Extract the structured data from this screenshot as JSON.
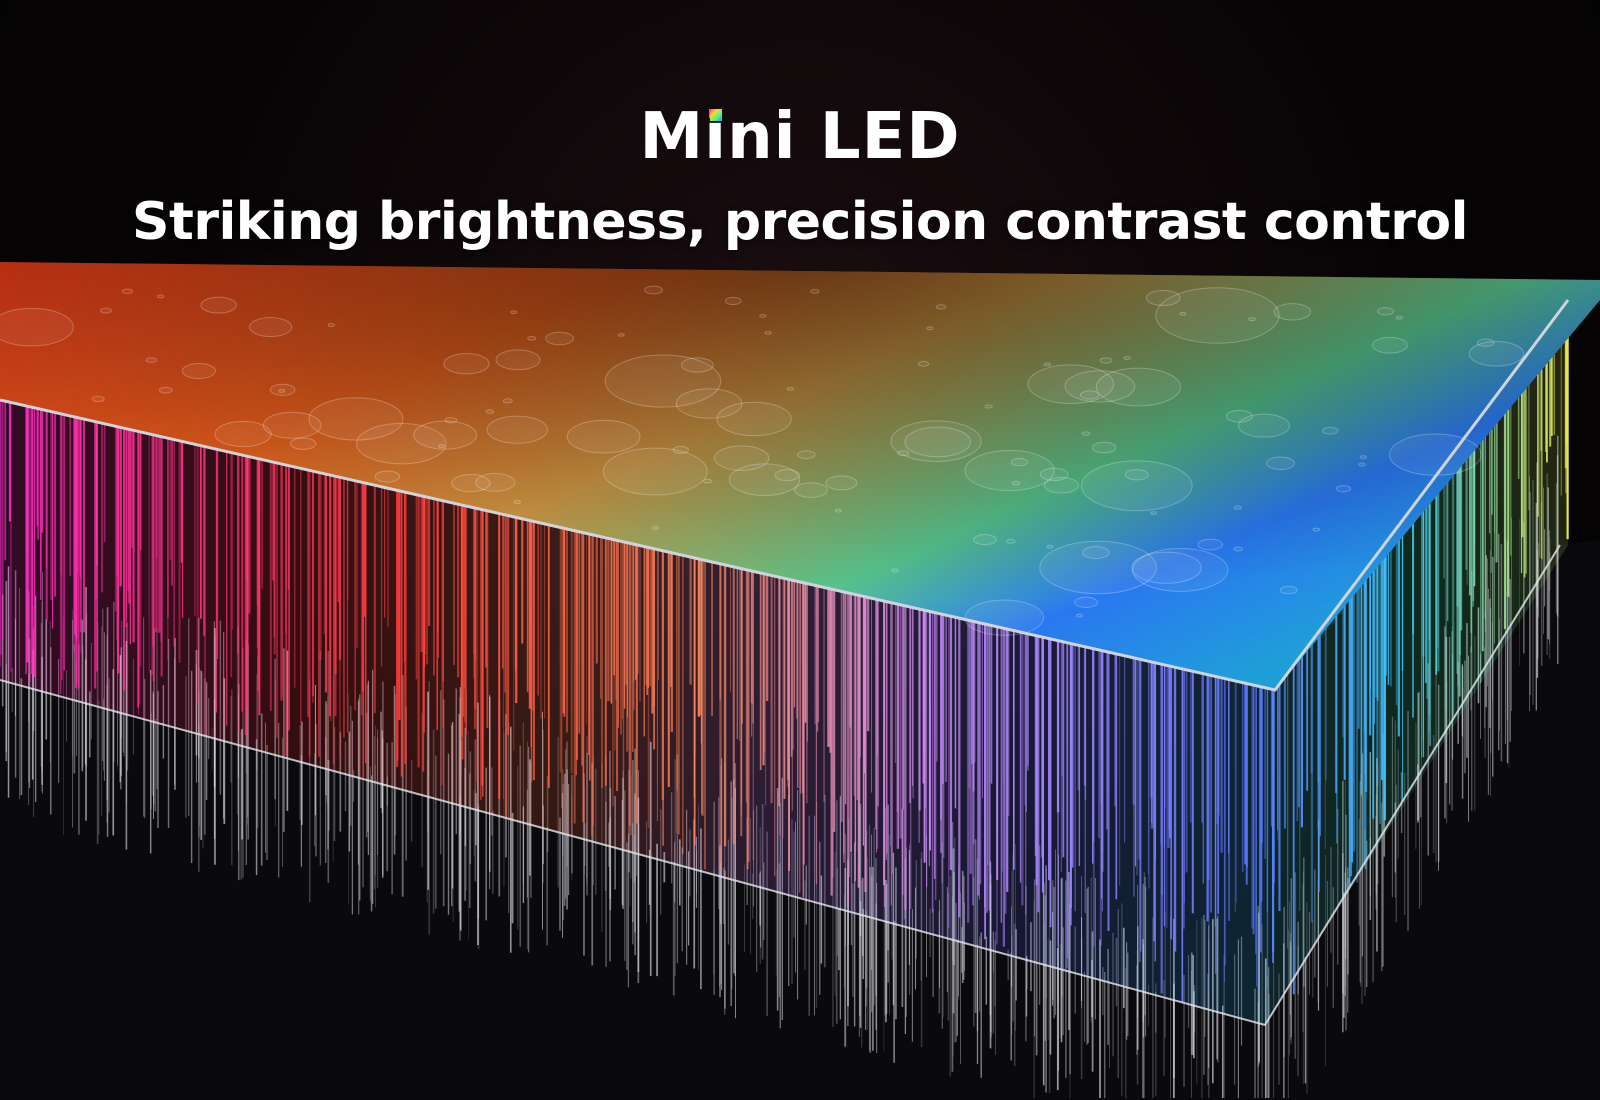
{
  "headline": {
    "prefix": "M",
    "dotted_letter": "i",
    "rest": "ni LED"
  },
  "subheadline": "Striking brightness, precision contrast control",
  "colors": {
    "background": "#050304",
    "warm": "#ff3a1a",
    "mid": "#ff9a1e",
    "green": "#35d870",
    "blue": "#2a6cff",
    "magenta": "#ff2fc8"
  }
}
